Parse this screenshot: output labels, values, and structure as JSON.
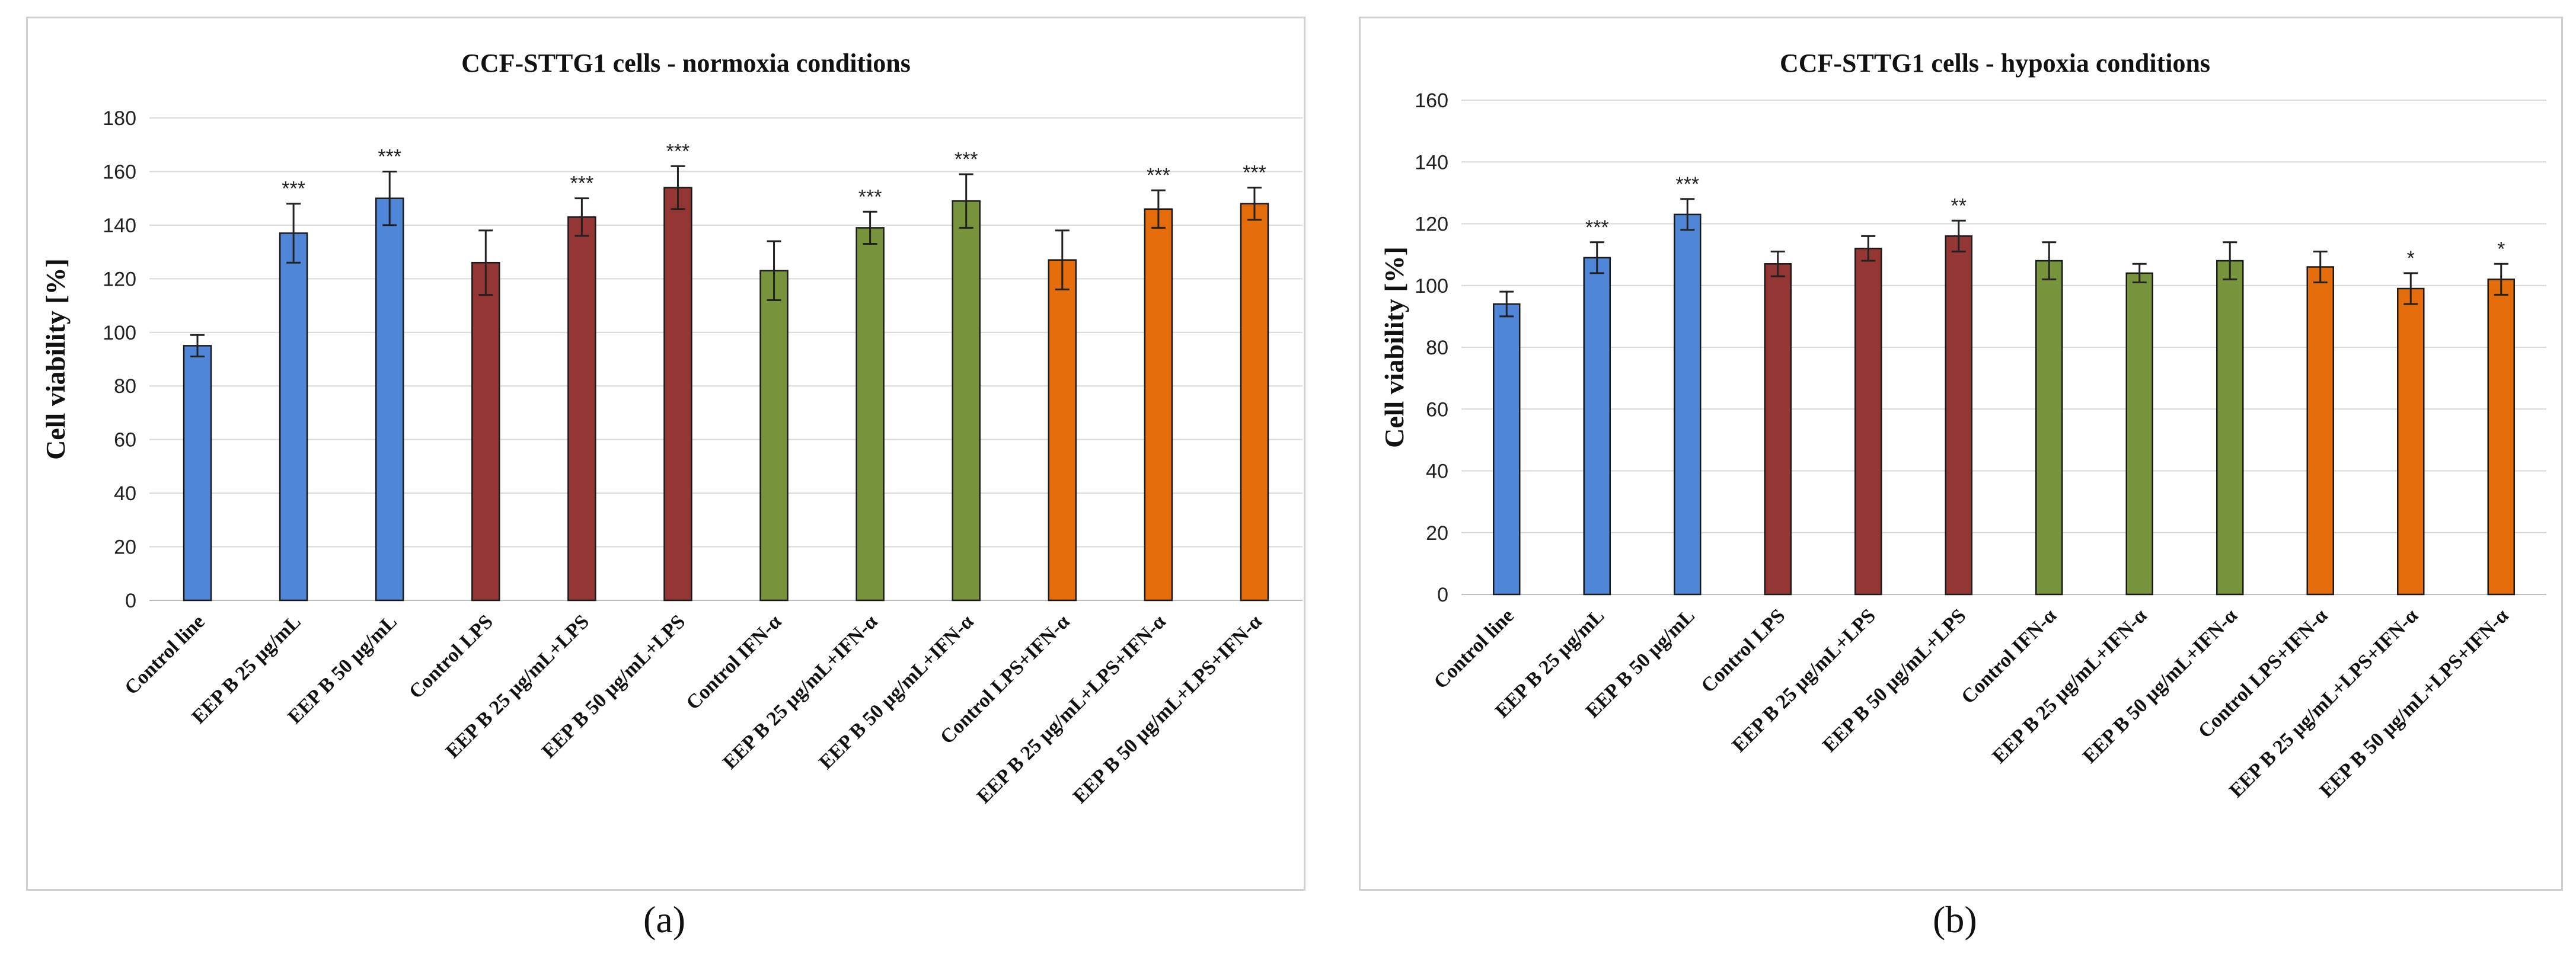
{
  "chart_data": [
    {
      "panel_label": "(a)",
      "type": "bar",
      "title": "CCF-STTG1  cells - normoxia  conditions",
      "xlabel": "",
      "ylabel": "Cell viability  [%]",
      "ylim": [
        0,
        180
      ],
      "yticks": [
        0,
        20,
        40,
        60,
        80,
        100,
        120,
        140,
        160,
        180
      ],
      "categories": [
        "Control line",
        "EEP  B 25 µg/mL",
        "EEP  B 50 µg/mL",
        "Control LPS",
        "EEP  B 25 µg/mL+LPS",
        "EEP  B 50 µg/mL+LPS",
        "Control  IFN-α",
        "EEP  B 25 µg/mL+IFN-α",
        "EEP  B 50 µg/mL+IFN-α",
        "Control  LPS+IFN-α",
        "EEP  B 25 µg/mL+LPS+IFN-α",
        "EEP  B 50 µg/mL+LPS+IFN-α"
      ],
      "values": [
        95,
        137,
        150,
        126,
        143,
        154,
        123,
        139,
        149,
        127,
        146,
        148
      ],
      "errors": [
        4,
        11,
        10,
        12,
        7,
        8,
        11,
        6,
        10,
        11,
        7,
        6
      ],
      "significance": [
        "",
        "***",
        "***",
        "",
        "***",
        "***",
        "",
        "***",
        "***",
        "",
        "***",
        "***"
      ],
      "colors": [
        "#4F86D8",
        "#4F86D8",
        "#4F86D8",
        "#943634",
        "#943634",
        "#943634",
        "#77933C",
        "#77933C",
        "#77933C",
        "#E46C0A",
        "#E46C0A",
        "#E46C0A"
      ],
      "grid": true
    },
    {
      "panel_label": "(b)",
      "type": "bar",
      "title": "CCF-STTG1  cells - hypoxia  conditions",
      "xlabel": "",
      "ylabel": "Cell viability  [%]",
      "ylim": [
        0,
        160
      ],
      "yticks": [
        0,
        20,
        40,
        60,
        80,
        100,
        120,
        140,
        160
      ],
      "categories": [
        "Control line",
        "EEP  B 25 µg/mL",
        "EEP  B 50 µg/mL",
        "Control LPS",
        "EEP  B 25 µg/mL+LPS",
        "EEP  B 50 µg/mL+LPS",
        "Control  IFN-α",
        "EEP  B 25 µg/mL+IFN-α",
        "EEP  B 50 µg/mL+IFN-α",
        "Control  LPS+IFN-α",
        "EEP  B 25 µg/mL+LPS+IFN-α",
        "EEP  B 50 µg/mL+LPS+IFN-α"
      ],
      "values": [
        94,
        109,
        123,
        107,
        112,
        116,
        108,
        104,
        108,
        106,
        99,
        102
      ],
      "errors": [
        4,
        5,
        5,
        4,
        4,
        5,
        6,
        3,
        6,
        5,
        5,
        5
      ],
      "significance": [
        "",
        "***",
        "***",
        "",
        "",
        "**",
        "",
        "",
        "",
        "",
        "*",
        "*"
      ],
      "colors": [
        "#4F86D8",
        "#4F86D8",
        "#4F86D8",
        "#943634",
        "#943634",
        "#943634",
        "#77933C",
        "#77933C",
        "#77933C",
        "#E46C0A",
        "#E46C0A",
        "#E46C0A"
      ],
      "grid": true
    }
  ]
}
